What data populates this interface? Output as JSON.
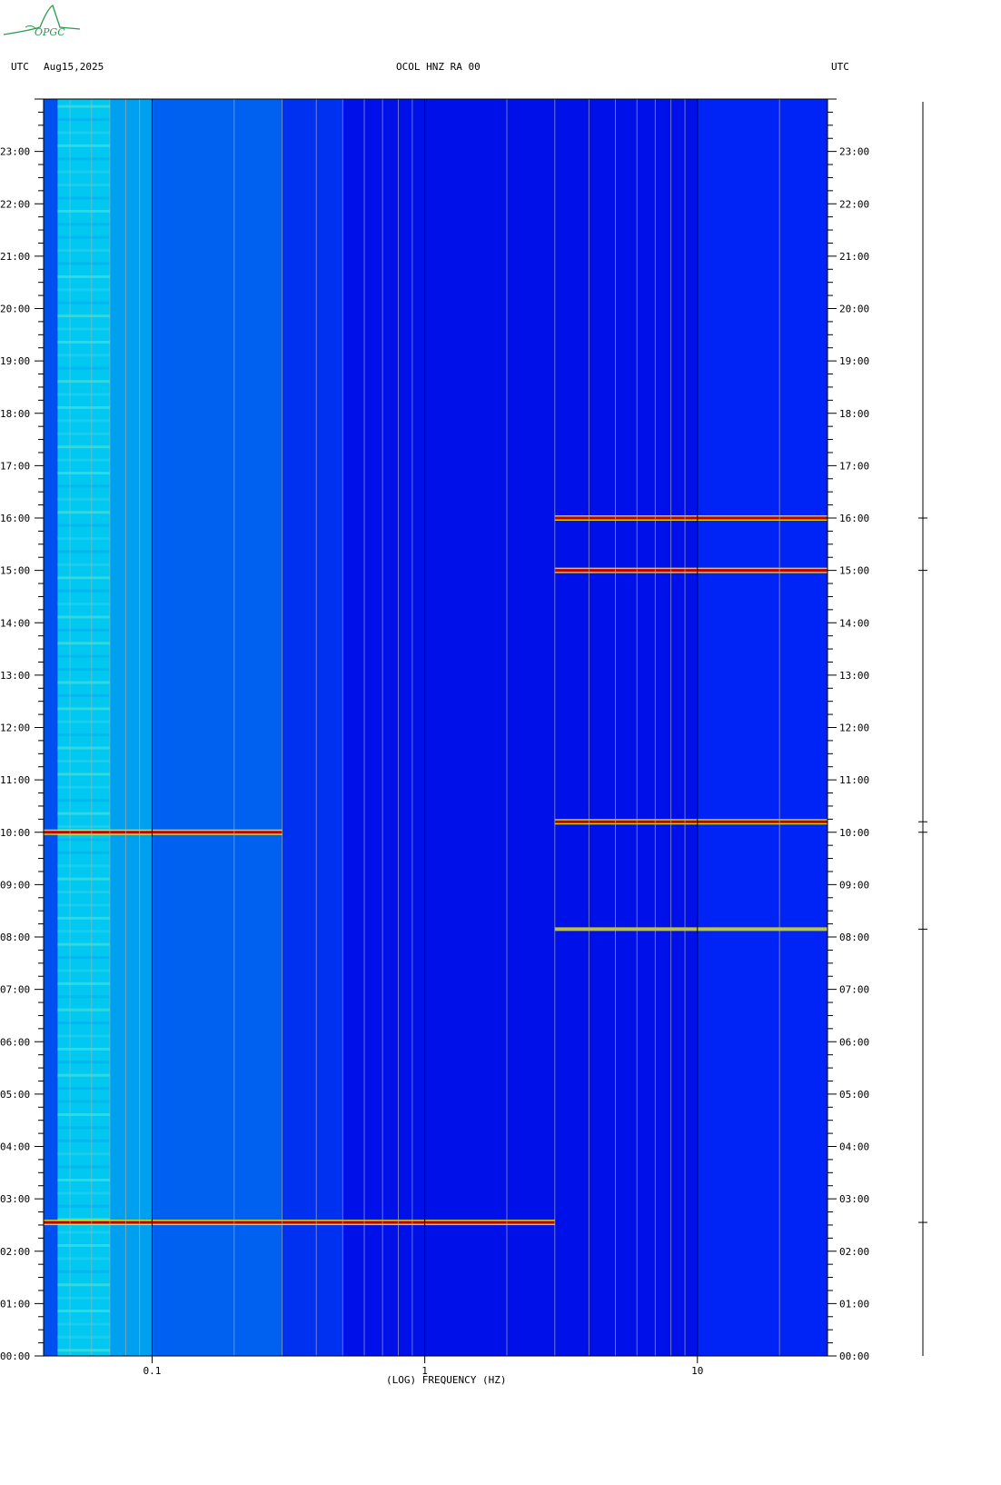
{
  "header": {
    "left_tz": "UTC",
    "date": "Aug15,2025",
    "title": "OCOL HNZ RA 00",
    "right_tz": "UTC"
  },
  "logo": {
    "text": "OPGC"
  },
  "colors": {
    "background": "#0010e8",
    "low_freq_band": "#00c8f0",
    "high_energy": "#c00000",
    "mid_energy": "#f0f000",
    "grid_major": "#000000",
    "grid_minor": "#b0b0b0"
  },
  "chart_data": {
    "type": "heatmap",
    "title": "OCOL HNZ RA 00",
    "xlabel": "(LOG) FREQUENCY (HZ)",
    "ylabel": "UTC",
    "x_scale": "log",
    "xlim": [
      0.04,
      30
    ],
    "ylim_hours": [
      0,
      24
    ],
    "x_ticks": [
      {
        "value": 0.1,
        "label": "0.1"
      },
      {
        "value": 1,
        "label": "1"
      },
      {
        "value": 10,
        "label": "10"
      }
    ],
    "y_ticks": [
      "00:00",
      "01:00",
      "02:00",
      "03:00",
      "04:00",
      "05:00",
      "06:00",
      "07:00",
      "08:00",
      "09:00",
      "10:00",
      "11:00",
      "12:00",
      "13:00",
      "14:00",
      "15:00",
      "16:00",
      "17:00",
      "18:00",
      "19:00",
      "20:00",
      "21:00",
      "22:00",
      "23:00"
    ],
    "events": [
      {
        "time_h": 2.55,
        "f_min": 0.04,
        "f_max": 3.0,
        "intensity": "high"
      },
      {
        "time_h": 10.0,
        "f_min": 0.04,
        "f_max": 0.3,
        "intensity": "high"
      },
      {
        "time_h": 15.0,
        "f_min": 3.0,
        "f_max": 30,
        "intensity": "high"
      },
      {
        "time_h": 16.0,
        "f_min": 3.0,
        "f_max": 30,
        "intensity": "high"
      },
      {
        "time_h": 10.2,
        "f_min": 3.0,
        "f_max": 30,
        "intensity": "high"
      },
      {
        "time_h": 8.15,
        "f_min": 3.0,
        "f_max": 30,
        "intensity": "medium"
      }
    ]
  }
}
